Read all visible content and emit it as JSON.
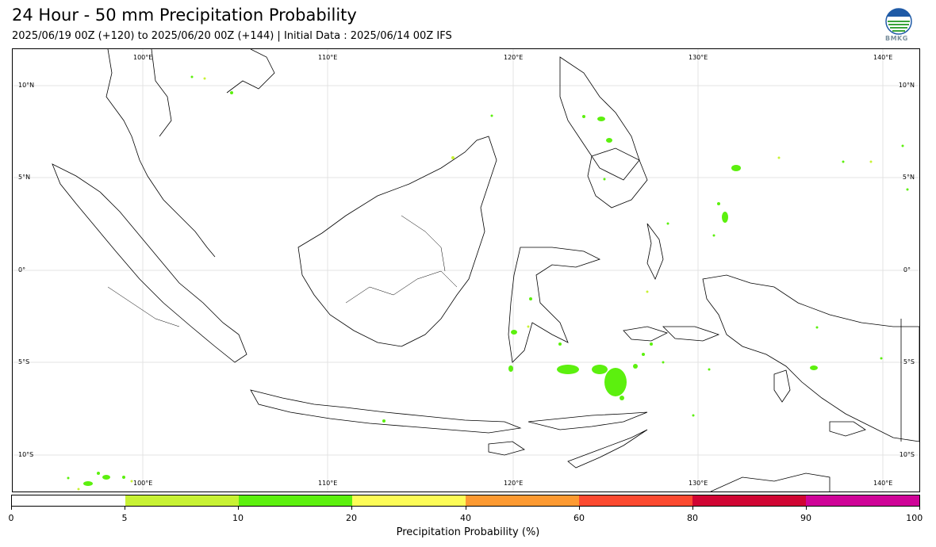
{
  "title": "24 Hour - 50 mm Precipitation Probability",
  "subtitle": "2025/06/19 00Z (+120) to 2025/06/20 00Z (+144) | Initial Data : 2025/06/14 00Z IFS",
  "logo_text": "BMKG",
  "map": {
    "lon_labels": [
      "100°E",
      "110°E",
      "120°E",
      "130°E",
      "140°E"
    ],
    "lat_labels": [
      "10°N",
      "5°N",
      "0°",
      "5°S",
      "10°S"
    ]
  },
  "colorbar": {
    "label": "Precipitation Probability (%)",
    "ticks": [
      "0",
      "5",
      "10",
      "20",
      "40",
      "60",
      "80",
      "90",
      "100"
    ],
    "colors": [
      "#ffffff",
      "#c8f234",
      "#5cf00e",
      "#fdfc57",
      "#fd9a32",
      "#fc4a30",
      "#d00533",
      "#cf0498"
    ]
  }
}
